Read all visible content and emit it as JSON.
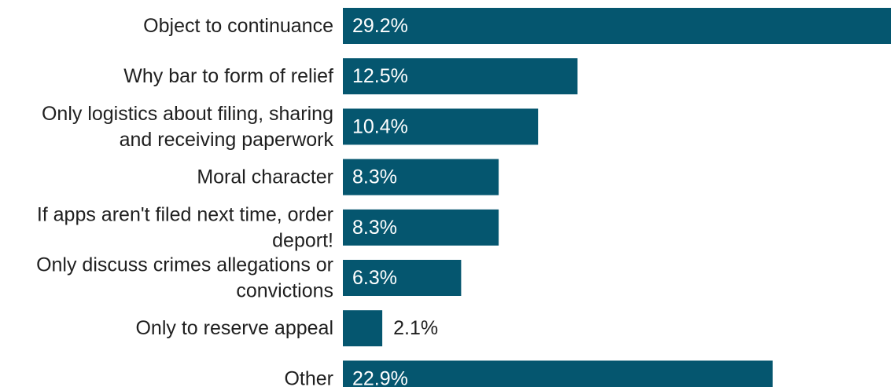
{
  "chart_data": {
    "type": "bar",
    "orientation": "horizontal",
    "categories": [
      [
        "Object to continuance"
      ],
      [
        "Why bar to form of relief"
      ],
      [
        "Only logistics about filing, sharing",
        "and receiving paperwork"
      ],
      [
        "Moral character"
      ],
      [
        "If apps aren't filed next time, order",
        "deport!"
      ],
      [
        "Only discuss crimes allegations or",
        "convictions"
      ],
      [
        "Only to reserve appeal"
      ],
      [
        "Other"
      ]
    ],
    "values": [
      29.2,
      12.5,
      10.4,
      8.3,
      8.3,
      6.3,
      2.1,
      22.9
    ],
    "value_labels": [
      "29.2%",
      "12.5%",
      "10.4%",
      "8.3%",
      "8.3%",
      "6.3%",
      "2.1%",
      "22.9%"
    ],
    "xlim": [
      0,
      29.2
    ],
    "bar_color": "#05566f",
    "label_inside_color": "#ffffff",
    "label_outside_color": "#1f1f1f",
    "grid": false,
    "legend": "none"
  }
}
